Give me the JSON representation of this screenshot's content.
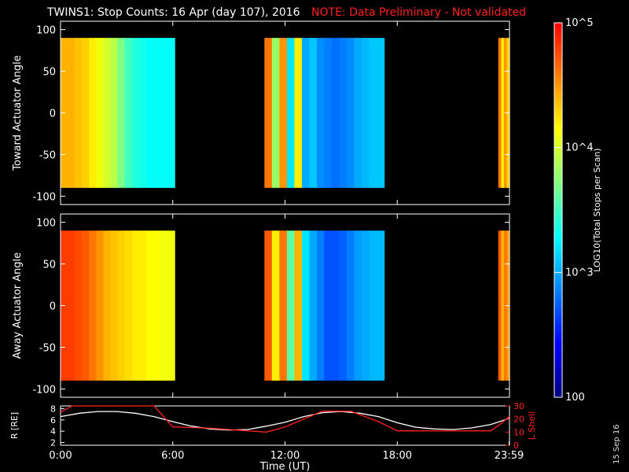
{
  "title": {
    "main": "TWINS1: Stop Counts: 16 Apr (day 107), 2016",
    "note": "NOTE: Data Preliminary - Not validated"
  },
  "date_stamp": "15 Sep 16",
  "colorbar": {
    "label": "LOG10(Total Stops per Scan)",
    "tick_labels": [
      "100",
      "10^3",
      "10^4",
      "10^5"
    ],
    "tick_values": [
      100,
      1000,
      10000,
      100000
    ],
    "colors": [
      "#000080",
      "#0000ff",
      "#0080ff",
      "#00ffff",
      "#80ff80",
      "#ffff00",
      "#ff8000",
      "#ff0000"
    ]
  },
  "chart_data": [
    {
      "id": "toward",
      "type": "heatmap",
      "ylabel": "Toward Actuator Angle",
      "ylim": [
        -110,
        110
      ],
      "ytick_values": [
        -100,
        -50,
        0,
        50,
        100
      ],
      "ytick_labels": [
        "-100",
        "-50",
        "0",
        "50",
        "100"
      ],
      "x_unit": "hours UT",
      "xlim": [
        0,
        24
      ],
      "data_angle_range": [
        -90,
        90
      ],
      "segments": [
        {
          "x": [
            0.0,
            6.1
          ],
          "log_stops": [
            4.4,
            4.4,
            4.35,
            4.3,
            4.2,
            4.1,
            4.0,
            3.9,
            3.7,
            3.5,
            3.4,
            3.35,
            3.3,
            3.3,
            3.3,
            3.3
          ]
        },
        {
          "x": [
            10.9,
            17.3
          ],
          "log_stops": [
            4.6,
            3.8,
            4.5,
            3.2,
            4.2,
            3.0,
            3.1,
            2.9,
            2.85,
            2.8,
            2.85,
            2.9,
            3.0,
            3.05,
            3.1,
            3.1
          ]
        },
        {
          "x": [
            23.4,
            24.0
          ],
          "log_stops": [
            4.6,
            4.2,
            4.5,
            4.3
          ]
        }
      ]
    },
    {
      "id": "away",
      "type": "heatmap",
      "ylabel": "Away Actuator Angle",
      "ylim": [
        -110,
        110
      ],
      "ytick_values": [
        -100,
        -50,
        0,
        50,
        100
      ],
      "ytick_labels": [
        "-100",
        "-50",
        "0",
        "50",
        "100"
      ],
      "x_unit": "hours UT",
      "xlim": [
        0,
        24
      ],
      "data_angle_range": [
        -90,
        90
      ],
      "segments": [
        {
          "x": [
            0.0,
            6.1
          ],
          "log_stops": [
            4.8,
            4.8,
            4.75,
            4.7,
            4.6,
            4.5,
            4.4,
            4.35,
            4.3,
            4.25,
            4.2,
            4.2,
            4.15,
            4.15,
            4.1,
            4.1
          ]
        },
        {
          "x": [
            10.9,
            17.3
          ],
          "log_stops": [
            4.7,
            4.2,
            4.6,
            3.6,
            4.4,
            3.2,
            3.0,
            2.85,
            2.7,
            2.7,
            2.75,
            2.85,
            2.95,
            3.0,
            3.05,
            3.05
          ]
        },
        {
          "x": [
            23.4,
            24.0
          ],
          "log_stops": [
            4.7,
            4.4,
            4.6,
            4.5
          ]
        }
      ]
    },
    {
      "id": "orbit",
      "type": "line",
      "xlabel": "Time (UT)",
      "xlim": [
        0,
        24
      ],
      "x_tick_labels": [
        "0:00",
        "6:00",
        "12:00",
        "18:00",
        "23:59"
      ],
      "x_tick_values": [
        0,
        6,
        12,
        18,
        23.98
      ],
      "left_axis": {
        "label": "R [RE]",
        "ylim": [
          1.5,
          8.5
        ],
        "ytick_values": [
          2,
          4,
          6,
          8
        ],
        "ytick_labels": [
          "2",
          "4",
          "6",
          "8"
        ]
      },
      "right_axis": {
        "label": "L Shell",
        "ylim": [
          0,
          30
        ],
        "ytick_values": [
          0,
          10,
          20,
          30
        ],
        "ytick_labels": [
          "0",
          "10",
          "20",
          "30"
        ],
        "color": "#ff2020"
      },
      "series": [
        {
          "axis": "left",
          "color": "#ffffff",
          "x": [
            0,
            1,
            2,
            3,
            4,
            5,
            6,
            7,
            8,
            9,
            10,
            11,
            12,
            13,
            14,
            15,
            16,
            17,
            18,
            19,
            20,
            21,
            22,
            23,
            24
          ],
          "y": [
            6.6,
            7.2,
            7.5,
            7.5,
            7.2,
            6.6,
            5.7,
            4.9,
            4.4,
            4.2,
            4.3,
            4.9,
            5.6,
            6.6,
            7.3,
            7.5,
            7.2,
            6.6,
            5.5,
            4.7,
            4.4,
            4.3,
            4.6,
            5.2,
            6.3
          ]
        },
        {
          "axis": "right",
          "color": "#ff2020",
          "x": [
            0,
            0.6,
            5.0,
            6.0,
            8.0,
            11.0,
            12.0,
            14.0,
            15.5,
            17.0,
            18.0,
            21.0,
            23.0,
            23.5,
            24.0
          ],
          "y": [
            25,
            30,
            30,
            14,
            13,
            10,
            14,
            26,
            26,
            18,
            11,
            11,
            11,
            16,
            22
          ]
        }
      ]
    }
  ]
}
